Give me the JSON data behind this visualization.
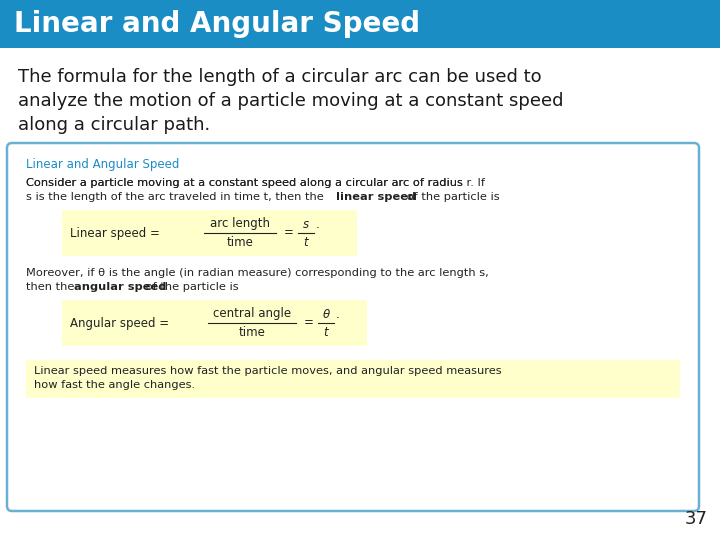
{
  "title": "Linear and Angular Speed",
  "title_bg_color": "#1b8dc5",
  "title_text_color": "#ffffff",
  "slide_bg_color": "#ffffff",
  "paragraph_text_color": "#1a1a1a",
  "paragraph_line1": "The formula for the length of a circular arc can be used to",
  "paragraph_line2": "analyze the motion of a particle moving at a constant speed",
  "paragraph_line3": "along a circular path.",
  "box_border_color": "#6ab0d4",
  "box_bg_color": "#ffffff",
  "box_title": "Linear and Angular Speed",
  "box_title_color": "#1b8dc5",
  "box_text1_line1": "Consider a particle moving at a constant speed along a circular arc of radius ",
  "box_text1_r": "r",
  "box_text1_end1": ". If",
  "box_text1_line2a": "s",
  "box_text1_line2b": " is the length of the arc traveled in time ",
  "box_text1_line2c": "t",
  "box_text1_line2d": ", then the ",
  "box_text1_bold": "linear speed",
  "box_text1_line2e": " of the particle is",
  "formula1_label": "Linear speed = ",
  "formula1_num": "arc length",
  "formula1_den": "time",
  "formula1_eq": "=",
  "formula1_s": "s",
  "formula1_t": "t",
  "formula1_dot": ".",
  "formula1_bg": "#ffffcc",
  "box_text2_line1a": "Moreover, if θ is the angle (in radian measure) corresponding to the arc length ",
  "box_text2_line1b": "s",
  "box_text2_line1c": ",",
  "box_text2_line2a": "then the ",
  "box_text2_bold": "angular speed",
  "box_text2_line2b": " of the particle is",
  "formula2_label": "Angular speed = ",
  "formula2_num": "central angle",
  "formula2_den": "time",
  "formula2_eq": "=",
  "formula2_theta": "θ",
  "formula2_t": "t",
  "formula2_dot": ".",
  "formula2_bg": "#ffffcc",
  "footer_line1": "Linear speed measures how fast the particle moves, and angular speed measures",
  "footer_line2": "how fast the angle changes.",
  "footer_bg": "#ffffcc",
  "text_color": "#222222",
  "page_number": "37"
}
